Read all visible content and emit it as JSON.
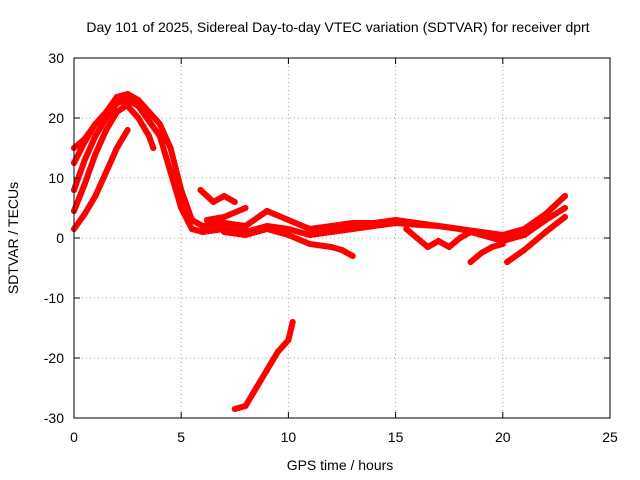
{
  "chart_data": {
    "type": "line",
    "title": "Day 101 of 2025, Sidereal Day-to-day VTEC variation (SDTVAR) for receiver dprt",
    "xlabel": "GPS time / hours",
    "ylabel": "SDTVAR / TECUs",
    "xlim": [
      0,
      25
    ],
    "ylim": [
      -30,
      30
    ],
    "xticks": [
      0,
      5,
      10,
      15,
      20,
      25
    ],
    "yticks": [
      -30,
      -20,
      -10,
      0,
      10,
      20,
      30
    ],
    "xtick_labels": [
      "0",
      "5",
      "10",
      "15",
      "20",
      "25"
    ],
    "ytick_labels": [
      "-30",
      "-20",
      "-10",
      "0",
      "10",
      "20",
      "30"
    ],
    "grid": true,
    "legend": "none",
    "colors": {
      "series": "#ff0000",
      "grid": "#a0a0a0",
      "axis": "#000000"
    },
    "series": [
      {
        "name": "track-1",
        "points": [
          [
            0.0,
            1.5
          ],
          [
            0.5,
            4
          ],
          [
            1.0,
            7
          ],
          [
            1.5,
            11
          ],
          [
            2.0,
            15
          ],
          [
            2.5,
            18
          ]
        ]
      },
      {
        "name": "track-2",
        "points": [
          [
            0.0,
            4.5
          ],
          [
            0.5,
            9
          ],
          [
            1.0,
            14
          ],
          [
            1.5,
            18
          ],
          [
            2.0,
            21
          ],
          [
            2.4,
            22
          ]
        ]
      },
      {
        "name": "track-3",
        "points": [
          [
            0.0,
            8
          ],
          [
            0.5,
            13
          ],
          [
            1.0,
            17
          ],
          [
            1.5,
            20
          ],
          [
            2.0,
            22.5
          ],
          [
            2.5,
            23
          ],
          [
            3.0,
            22
          ],
          [
            3.5,
            19.5
          ],
          [
            4.0,
            17
          ],
          [
            4.5,
            11
          ],
          [
            5.0,
            5
          ],
          [
            5.5,
            1.5
          ],
          [
            6.0,
            1
          ],
          [
            7.0,
            1.5
          ],
          [
            8.0,
            1
          ],
          [
            9.0,
            2
          ],
          [
            10.0,
            1.5
          ],
          [
            11.0,
            0.5
          ],
          [
            12.0,
            1
          ],
          [
            13.0,
            1.5
          ],
          [
            14.0,
            2
          ],
          [
            15.0,
            2.5
          ],
          [
            16.0,
            2.2
          ],
          [
            17.0,
            2
          ],
          [
            18.0,
            1.5
          ],
          [
            19.0,
            0.5
          ],
          [
            20.0,
            -0.5
          ],
          [
            21.0,
            0.5
          ],
          [
            22.0,
            3
          ],
          [
            22.9,
            5
          ]
        ]
      },
      {
        "name": "track-4",
        "points": [
          [
            0.0,
            12.5
          ],
          [
            0.5,
            16
          ],
          [
            1.0,
            19
          ],
          [
            1.5,
            20.5
          ]
        ]
      },
      {
        "name": "track-5",
        "points": [
          [
            0.0,
            15
          ],
          [
            0.5,
            16.5
          ],
          [
            1.0,
            19
          ],
          [
            1.5,
            21
          ],
          [
            2.0,
            23.5
          ],
          [
            2.5,
            24
          ],
          [
            3.0,
            23
          ],
          [
            3.5,
            21
          ],
          [
            4.0,
            19
          ],
          [
            4.5,
            15
          ],
          [
            5.0,
            8
          ],
          [
            5.5,
            3
          ],
          [
            6.0,
            2
          ],
          [
            7.0,
            2.5
          ],
          [
            8.0,
            2
          ],
          [
            9.0,
            4.5
          ],
          [
            10.0,
            3
          ],
          [
            11.0,
            1.5
          ],
          [
            12.0,
            2
          ],
          [
            13.0,
            2.5
          ],
          [
            14.0,
            2.5
          ],
          [
            15.0,
            3
          ],
          [
            16.0,
            2.5
          ],
          [
            17.0,
            2
          ],
          [
            18.0,
            1.5
          ],
          [
            19.0,
            1
          ],
          [
            20.0,
            0.5
          ],
          [
            21.0,
            1.5
          ],
          [
            22.0,
            4
          ],
          [
            22.9,
            7
          ]
        ]
      },
      {
        "name": "track-6",
        "points": [
          [
            2.5,
            22
          ],
          [
            3.0,
            20
          ],
          [
            3.5,
            17
          ],
          [
            3.7,
            15
          ]
        ]
      },
      {
        "name": "track-7",
        "points": [
          [
            5.9,
            8
          ],
          [
            6.5,
            6
          ],
          [
            7.0,
            7
          ],
          [
            7.5,
            6
          ]
        ]
      },
      {
        "name": "track-8",
        "points": [
          [
            6.2,
            3
          ],
          [
            7.0,
            3.5
          ],
          [
            8.0,
            5
          ]
        ]
      },
      {
        "name": "track-9",
        "points": [
          [
            7.0,
            1
          ],
          [
            8.0,
            0.5
          ],
          [
            9.0,
            1.5
          ],
          [
            10.0,
            0.5
          ],
          [
            11.0,
            -1
          ],
          [
            12.0,
            -1.5
          ],
          [
            12.5,
            -2
          ],
          [
            13.0,
            -3
          ]
        ]
      },
      {
        "name": "track-10",
        "points": [
          [
            15.5,
            1.5
          ],
          [
            16.0,
            0
          ],
          [
            16.5,
            -1.5
          ],
          [
            17.0,
            -0.5
          ]
        ]
      },
      {
        "name": "track-11",
        "points": [
          [
            17.0,
            -0.5
          ],
          [
            17.5,
            -1.5
          ],
          [
            18.0,
            0
          ],
          [
            18.5,
            1
          ]
        ]
      },
      {
        "name": "track-12",
        "points": [
          [
            18.5,
            -4
          ],
          [
            19.0,
            -2.5
          ],
          [
            19.5,
            -1.5
          ],
          [
            20.0,
            -1
          ]
        ]
      },
      {
        "name": "track-13",
        "points": [
          [
            20.2,
            -4
          ],
          [
            21.0,
            -2
          ],
          [
            22.0,
            1
          ],
          [
            22.9,
            3.5
          ]
        ]
      },
      {
        "name": "track-14",
        "points": [
          [
            7.5,
            -28.5
          ],
          [
            8.0,
            -28
          ],
          [
            8.5,
            -25
          ],
          [
            9.0,
            -22
          ],
          [
            9.5,
            -19
          ],
          [
            10.0,
            -17
          ],
          [
            10.2,
            -14
          ]
        ]
      }
    ]
  }
}
